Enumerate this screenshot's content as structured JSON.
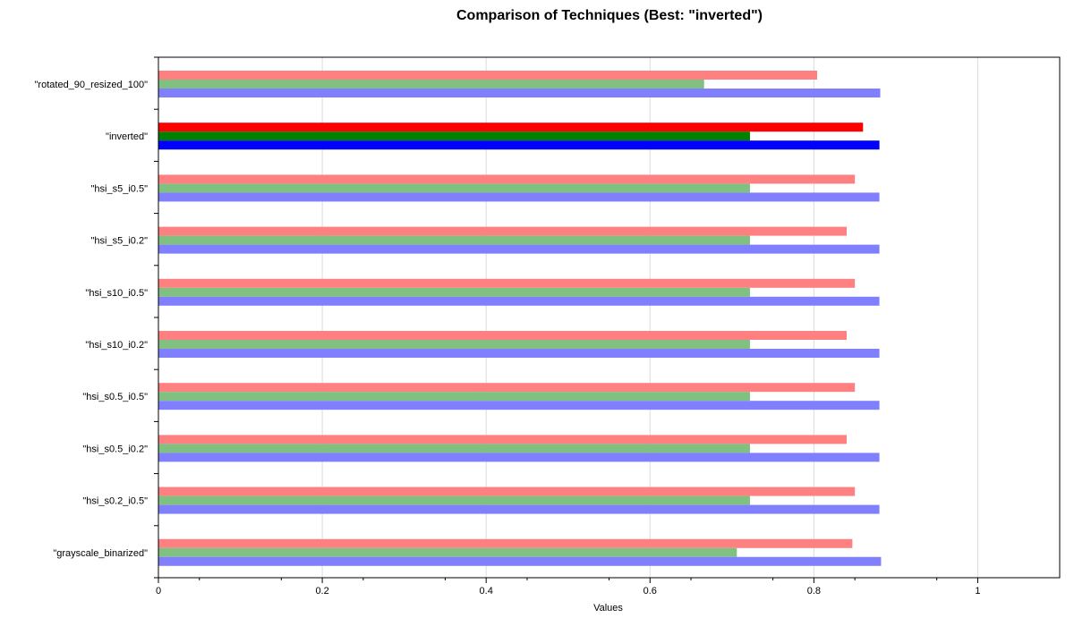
{
  "chart_data": {
    "type": "bar",
    "orientation": "horizontal",
    "title": "Comparison of Techniques (Best: \"inverted\")",
    "xlabel": "Values",
    "ylabel": "",
    "xlim": [
      0,
      1.1
    ],
    "x_ticks": [
      0,
      0.2,
      0.4,
      0.6,
      0.8,
      1
    ],
    "grid": "vertical",
    "legend": "none",
    "highlighted_category": "\"inverted\"",
    "categories": [
      "\"rotated_90_resized_100\"",
      "\"inverted\"",
      "\"hsi_s5_i0.5\"",
      "\"hsi_s5_i0.2\"",
      "\"hsi_s10_i0.5\"",
      "\"hsi_s10_i0.2\"",
      "\"hsi_s0.5_i0.5\"",
      "\"hsi_s0.5_i0.2\"",
      "\"hsi_s0.2_i0.5\"",
      "\"grayscale_binarized\""
    ],
    "series": [
      {
        "color": "#ff8080",
        "highlight_color": "#ff0000",
        "values": [
          0.804,
          0.86,
          0.85,
          0.84,
          0.85,
          0.84,
          0.85,
          0.84,
          0.85,
          0.847
        ]
      },
      {
        "color": "#80c080",
        "highlight_color": "#008000",
        "values": [
          0.666,
          0.722,
          0.722,
          0.722,
          0.722,
          0.722,
          0.722,
          0.722,
          0.722,
          0.706
        ]
      },
      {
        "color": "#8080ff",
        "highlight_color": "#0000ff",
        "values": [
          0.881,
          0.88,
          0.88,
          0.88,
          0.88,
          0.88,
          0.88,
          0.88,
          0.88,
          0.882
        ]
      }
    ]
  }
}
